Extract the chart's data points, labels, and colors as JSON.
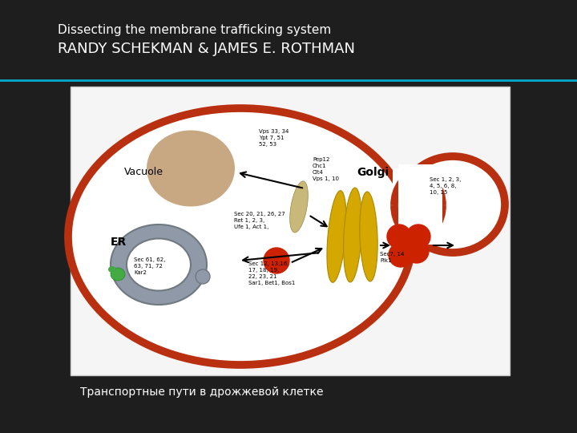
{
  "background_color": "#1e1e1e",
  "title_line1": "Dissecting the membrane trafficking system",
  "title_line2": "RANDY SCHEKMAN & JAMES E. ROTHMAN",
  "title_color": "#ffffff",
  "title_fontsize1": 11,
  "title_fontsize2": 13,
  "subtitle_text": "Транспортные пути в дрожжевой клетке",
  "subtitle_fontsize": 10,
  "teal_line_color": "#00aacc",
  "image_bg": "#f5f5f5",
  "cell_color": "#b83010",
  "cell_lw": 7,
  "vacuole_color": "#c8a882",
  "er_color": "#9099a8",
  "golgi_color": "#d4a800",
  "vesicle_color": "#cc2200",
  "tan_vesicle_color": "#c8b87a",
  "green_color": "#44aa44",
  "annotation_fs": 5,
  "label_fs": 9
}
